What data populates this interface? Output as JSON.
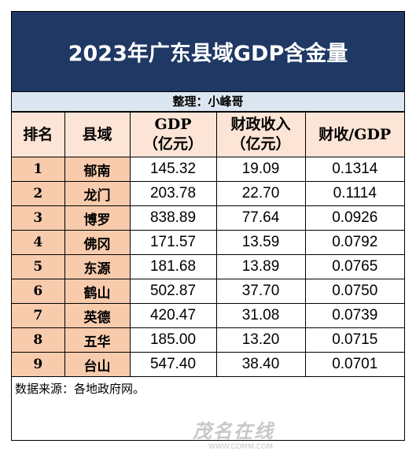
{
  "header": {
    "title": "2023年广东县域GDP含金量",
    "subtitle": "整理：小峰哥"
  },
  "table": {
    "columns": [
      "排名",
      "县域",
      "GDP\n（亿元）",
      "财政收入\n（亿元）",
      "财收/GDP"
    ],
    "rows": [
      [
        "1",
        "郁南",
        "145.32",
        "19.09",
        "0.1314"
      ],
      [
        "2",
        "龙门",
        "203.78",
        "22.70",
        "0.1114"
      ],
      [
        "3",
        "博罗",
        "838.89",
        "77.64",
        "0.0926"
      ],
      [
        "4",
        "佛冈",
        "171.57",
        "13.59",
        "0.0792"
      ],
      [
        "5",
        "东源",
        "181.68",
        "13.89",
        "0.0765"
      ],
      [
        "6",
        "鹤山",
        "502.87",
        "37.70",
        "0.0750"
      ],
      [
        "7",
        "英德",
        "420.47",
        "31.08",
        "0.0739"
      ],
      [
        "8",
        "五华",
        "185.00",
        "13.20",
        "0.0715"
      ],
      [
        "9",
        "台山",
        "547.40",
        "38.40",
        "0.0701"
      ]
    ]
  },
  "footer": {
    "note": "数据来源：各地政府网。"
  },
  "watermark": {
    "brand": "茂名在线",
    "url": "WWW.GDMM.COM"
  }
}
